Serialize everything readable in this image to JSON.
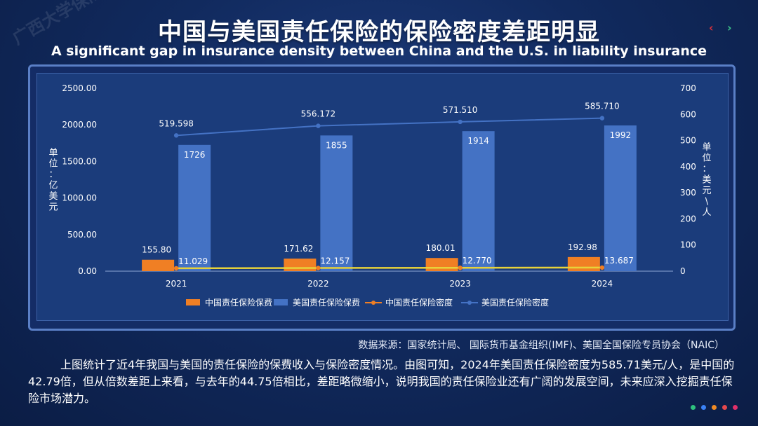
{
  "page": {
    "watermark": "广西大学保险专硕",
    "title_cn": "中国与美国责任保险的保险密度差距明显",
    "title_en": "A significant gap in insurance density between China and the U.S. in liability insurance",
    "nav_prev": "‹",
    "nav_next": "›",
    "source": "数据来源：国家统计局、 国际货币基金组织(IMF)、美国全国保险专员协会（NAIC）",
    "paragraph": "上图统计了近4年我国与美国的责任保险的保费收入与保险密度情况。由图可知，2024年美国责任保险密度为585.71美元/人，是中国的42.79倍，但从倍数差距上来看，与去年的44.75倍相比，差距略微缩小，说明我国的责任保险业还有广阔的发展空间，未来应深入挖掘责任保险市场潜力。",
    "dots_colors": [
      "#2ec27e",
      "#3b82f6",
      "#f08a24",
      "#e5484d",
      "#e0306a"
    ]
  },
  "chart_data": {
    "type": "bar",
    "categories": [
      "2021",
      "2022",
      "2023",
      "2024"
    ],
    "ylabel_left": "单位：亿美元",
    "ylabel_right": "单位：美元\\人",
    "ylim_left": [
      0,
      2500
    ],
    "ylim_right": [
      0,
      700
    ],
    "yticks_left": [
      "0.00",
      "500.00",
      "1000.00",
      "1500.00",
      "2000.00",
      "2500.00"
    ],
    "yticks_right": [
      "0",
      "100",
      "200",
      "300",
      "400",
      "500",
      "600",
      "700"
    ],
    "legend_position": "bottom",
    "series": [
      {
        "name": "中国责任保险保费",
        "type": "bar",
        "axis": "left",
        "color": "#f07f24",
        "values": [
          155.8,
          171.62,
          180.01,
          192.98
        ],
        "labels": [
          "155.80",
          "171.62",
          "180.01",
          "192.98"
        ]
      },
      {
        "name": "美国责任保险保费",
        "type": "bar",
        "axis": "left",
        "color": "#4472c4",
        "values": [
          1726,
          1855,
          1914,
          1992
        ],
        "labels": [
          "1726",
          "1855",
          "1914",
          "1992"
        ]
      },
      {
        "name": "中国责任保险密度",
        "type": "line",
        "axis": "right",
        "color": "#f07f24",
        "line_color": "#e7d23a",
        "values": [
          11.029,
          12.157,
          12.77,
          13.687
        ],
        "labels": [
          "11.029",
          "12.157",
          "12.770",
          "13.687"
        ]
      },
      {
        "name": "美国责任保险密度",
        "type": "line",
        "axis": "right",
        "color": "#4472c4",
        "values": [
          519.598,
          556.172,
          571.51,
          585.71
        ],
        "labels": [
          "519.598",
          "556.172",
          "571.510",
          "585.710"
        ]
      }
    ]
  }
}
